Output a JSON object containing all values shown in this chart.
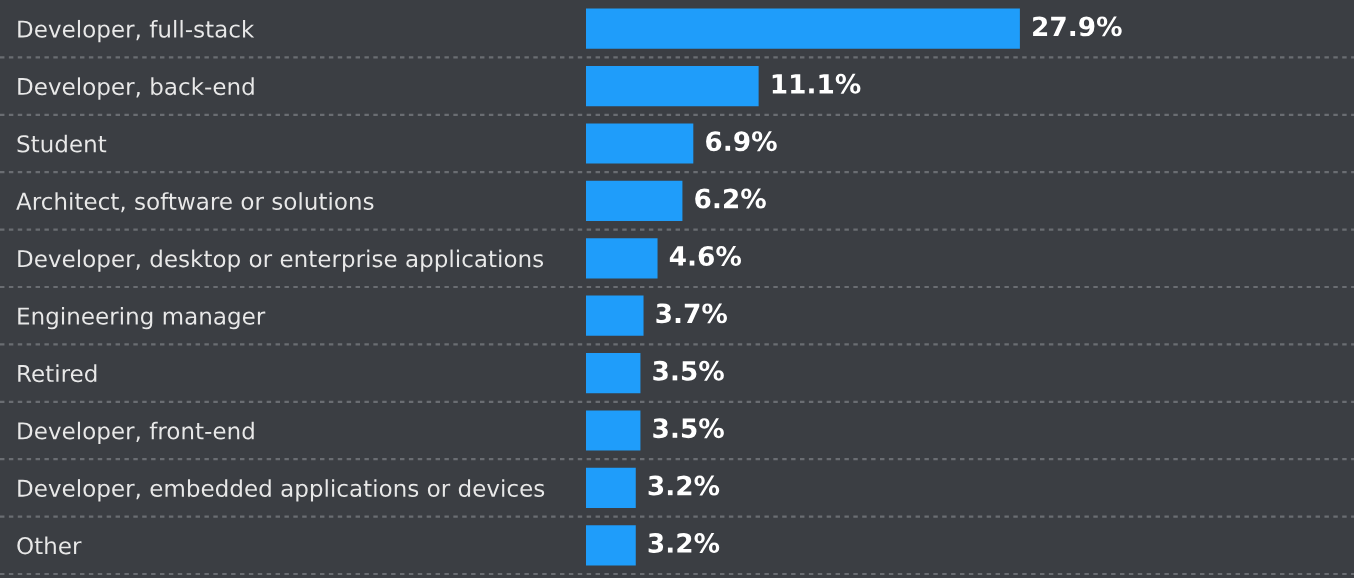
{
  "chart_data": {
    "type": "bar",
    "orientation": "horizontal",
    "categories": [
      "Developer, full-stack",
      "Developer, back-end",
      "Student",
      "Architect, software or solutions",
      "Developer, desktop or enterprise applications",
      "Engineering manager",
      "Retired",
      "Developer, front-end",
      "Developer, embedded applications or devices",
      "Other"
    ],
    "values": [
      27.9,
      11.1,
      6.9,
      6.2,
      4.6,
      3.7,
      3.5,
      3.5,
      3.2,
      3.2
    ],
    "value_labels": [
      "27.9%",
      "11.1%",
      "6.9%",
      "6.2%",
      "4.6%",
      "3.7%",
      "3.5%",
      "3.5%",
      "3.2%",
      "3.2%"
    ],
    "color": "#1f9dfa",
    "grid": "y"
  }
}
